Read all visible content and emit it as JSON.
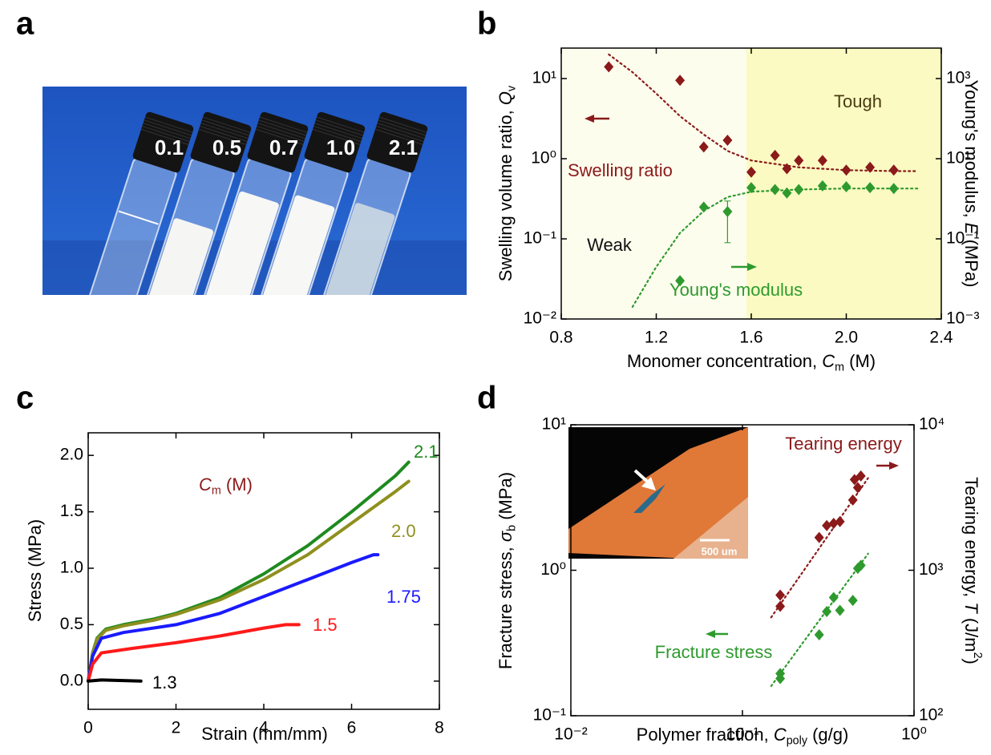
{
  "photo": {
    "panel_label": "a",
    "labels": [
      "0.1",
      "0.5",
      "0.7",
      "1.0",
      "2.1"
    ]
  },
  "chart_data": [
    {
      "panel_label": "b",
      "type": "scatter",
      "xlabel": [
        {
          "text": "Monomer concentration, "
        },
        {
          "text": "C",
          "italic": true
        },
        {
          "text": "m",
          "sub": true
        },
        {
          "text": " (M)"
        }
      ],
      "ylabel": [
        {
          "text": "Swelling volume ratio, "
        },
        {
          "text": "Q",
          "italic": true
        },
        {
          "text": "v",
          "sub": true
        }
      ],
      "y2label": [
        {
          "text": "Young's modulus, "
        },
        {
          "text": "E",
          "italic": true
        },
        {
          "text": " (MPa)"
        }
      ],
      "xlim": [
        0.8,
        2.4
      ],
      "xticks": [
        0.8,
        1.2,
        1.6,
        {
          "value": 2.0,
          "label": "2.0"
        },
        2.4
      ],
      "ylog": true,
      "ylim": [
        0.01,
        24
      ],
      "yticks": [
        {
          "value": 0.01,
          "label": "10⁻²"
        },
        {
          "value": 0.1,
          "label": "10⁻¹"
        },
        {
          "value": 1,
          "label": "10⁰"
        },
        {
          "value": 10,
          "label": "10¹"
        }
      ],
      "y2lim": [
        0.001,
        5760
      ],
      "y2ticks": [
        {
          "value": 0.001,
          "label": "10⁻³"
        },
        {
          "value": 0.1,
          "label": "10⁻¹"
        },
        {
          "value": 10,
          "label": "10¹"
        },
        {
          "value": 1000,
          "label": "10³"
        }
      ],
      "regions": [
        {
          "name": "Weak",
          "xlim": [
            0.8,
            1.58
          ],
          "color": "#fdfdee"
        },
        {
          "name": "Tough",
          "xlim": [
            1.58,
            2.4
          ],
          "color": "#fafac2"
        }
      ],
      "series": [
        {
          "name": "Swelling ratio",
          "color": "#8b1a1a",
          "marker": "diamond",
          "x": [
            1.0,
            1.3,
            1.4,
            1.5,
            1.6,
            1.7,
            1.75,
            1.8,
            1.9,
            2.0,
            2.1,
            2.2
          ],
          "values": [
            14,
            9.5,
            1.4,
            1.7,
            0.68,
            1.1,
            0.75,
            0.95,
            0.95,
            0.72,
            0.78,
            0.72
          ]
        },
        {
          "color": "#8b1a1a",
          "style": "dashed",
          "x": [
            1.0,
            1.1,
            1.2,
            1.3,
            1.4,
            1.5,
            1.6,
            1.8,
            2.0,
            2.2,
            2.3
          ],
          "values": [
            20,
            12,
            6.5,
            3.4,
            2.0,
            1.25,
            0.95,
            0.78,
            0.72,
            0.7,
            0.7
          ]
        },
        {
          "name": "Young's modulus",
          "color": "#2e9a2e",
          "marker": "diamond",
          "axis": "y2",
          "x": [
            1.3,
            1.4,
            1.5,
            1.6,
            1.7,
            1.75,
            1.8,
            1.9,
            2.0,
            2.1,
            2.2
          ],
          "values": [
            0.009,
            0.62,
            0.48,
            1.9,
            1.7,
            1.4,
            1.7,
            2.1,
            2.0,
            1.9,
            1.8
          ],
          "errors": [
            null,
            null,
            0.4,
            null,
            null,
            null,
            null,
            null,
            null,
            null,
            null
          ]
        },
        {
          "color": "#2e9a2e",
          "style": "dashed",
          "axis": "y2",
          "x": [
            1.1,
            1.2,
            1.3,
            1.4,
            1.5,
            1.6,
            1.8,
            2.0,
            2.3
          ],
          "values": [
            0.002,
            0.02,
            0.14,
            0.5,
            1.1,
            1.5,
            1.7,
            1.8,
            1.8
          ]
        }
      ]
    },
    {
      "panel_label": "c",
      "type": "line",
      "xlabel": [
        {
          "text": "Strain (mm/mm)"
        }
      ],
      "ylabel": [
        {
          "text": "Stress (MPa)"
        }
      ],
      "annotation": [
        {
          "text": "C",
          "italic": true
        },
        {
          "text": "m",
          "sub": true
        },
        {
          "text": " (M)"
        }
      ],
      "annotation_color": "#8b1a1a",
      "xlim": [
        0,
        8
      ],
      "xticks": [
        0,
        2,
        4,
        6,
        8
      ],
      "ylim": [
        -0.25,
        2.2
      ],
      "yticks": [
        {
          "value": 0,
          "label": "0.0"
        },
        0.5,
        {
          "value": 1,
          "label": "1.0"
        },
        1.5,
        {
          "value": 2,
          "label": "2.0"
        }
      ],
      "series": [
        {
          "name": "2.1",
          "color": "#1f8a1f",
          "x": [
            0,
            0.1,
            0.2,
            0.4,
            0.8,
            1.5,
            2,
            3,
            4,
            5,
            6,
            7,
            7.3
          ],
          "values": [
            0,
            0.25,
            0.38,
            0.46,
            0.5,
            0.55,
            0.6,
            0.74,
            0.95,
            1.2,
            1.5,
            1.82,
            1.94
          ]
        },
        {
          "name": "2.0",
          "color": "#8f8f1f",
          "x": [
            0,
            0.1,
            0.2,
            0.4,
            0.8,
            1.5,
            2,
            3,
            4,
            5,
            6,
            7,
            7.3
          ],
          "values": [
            0,
            0.24,
            0.37,
            0.45,
            0.49,
            0.54,
            0.59,
            0.72,
            0.9,
            1.12,
            1.4,
            1.68,
            1.77
          ]
        },
        {
          "name": "1.75",
          "color": "#1a1aff",
          "x": [
            0,
            0.1,
            0.3,
            0.8,
            2,
            3,
            4,
            5,
            6,
            6.5,
            6.6
          ],
          "values": [
            0,
            0.22,
            0.38,
            0.43,
            0.5,
            0.6,
            0.75,
            0.9,
            1.05,
            1.12,
            1.12
          ]
        },
        {
          "name": "1.5",
          "color": "#ff1a1a",
          "x": [
            0,
            0.1,
            0.3,
            1,
            2,
            3,
            4,
            4.5,
            4.8
          ],
          "values": [
            0,
            0.15,
            0.25,
            0.29,
            0.34,
            0.4,
            0.47,
            0.5,
            0.5
          ]
        },
        {
          "name": "1.3",
          "color": "#000000",
          "x": [
            0,
            0.3,
            1.2
          ],
          "values": [
            0,
            0.01,
            0
          ]
        }
      ]
    },
    {
      "panel_label": "d",
      "type": "scatter",
      "xlabel": [
        {
          "text": "Polymer fraction, "
        },
        {
          "text": "C",
          "italic": true
        },
        {
          "text": "poly",
          "sub": true
        },
        {
          "text": " (g/g)"
        }
      ],
      "ylabel": [
        {
          "text": "Fracture stress, "
        },
        {
          "text": "σ",
          "italic": true
        },
        {
          "text": "b",
          "sub": true
        },
        {
          "text": " (MPa)"
        }
      ],
      "y2label": [
        {
          "text": "Tearing energy, "
        },
        {
          "text": "T",
          "italic": true
        },
        {
          "text": " (J/m"
        },
        {
          "text": "2",
          "sup": true
        },
        {
          "text": ")"
        }
      ],
      "xlog": true,
      "xlim": [
        0.01,
        1
      ],
      "xticks": [
        {
          "value": 0.01,
          "label": "10⁻²"
        },
        {
          "value": 0.1,
          "label": "10⁻¹"
        },
        {
          "value": 1,
          "label": "10⁰"
        }
      ],
      "ylog": true,
      "ylim": [
        0.1,
        10
      ],
      "yticks": [
        {
          "value": 0.1,
          "label": "10⁻¹"
        },
        {
          "value": 1,
          "label": "10⁰"
        },
        {
          "value": 10,
          "label": "10¹"
        }
      ],
      "y2lim": [
        100,
        10000
      ],
      "y2ticks": [
        {
          "value": 100,
          "label": "10²"
        },
        {
          "value": 1000,
          "label": "10³"
        },
        {
          "value": 10000,
          "label": "10⁴"
        }
      ],
      "inset": {
        "scale_label": "500 um"
      },
      "series": [
        {
          "name": "Fracture stress",
          "color": "#2e9a2e",
          "marker": "diamond",
          "x": [
            0.166,
            0.166,
            0.28,
            0.31,
            0.34,
            0.37,
            0.44,
            0.47,
            0.49
          ],
          "values": [
            0.195,
            0.18,
            0.36,
            0.52,
            0.65,
            0.53,
            0.62,
            1.03,
            1.08
          ]
        },
        {
          "color": "#2e9a2e",
          "style": "dashed",
          "x": [
            0.147,
            0.54
          ],
          "values": [
            0.16,
            1.3
          ]
        },
        {
          "name": "Tearing energy",
          "color": "#8b1a1a",
          "marker": "diamond",
          "axis": "y2",
          "x": [
            0.166,
            0.166,
            0.28,
            0.31,
            0.34,
            0.37,
            0.44,
            0.45,
            0.47,
            0.49
          ],
          "values": [
            675,
            565,
            1680,
            2030,
            2100,
            2160,
            3040,
            4200,
            3700,
            4450
          ]
        },
        {
          "color": "#8b1a1a",
          "style": "dashed",
          "axis": "y2",
          "x": [
            0.147,
            0.54
          ],
          "values": [
            474,
            4300
          ]
        }
      ]
    }
  ]
}
